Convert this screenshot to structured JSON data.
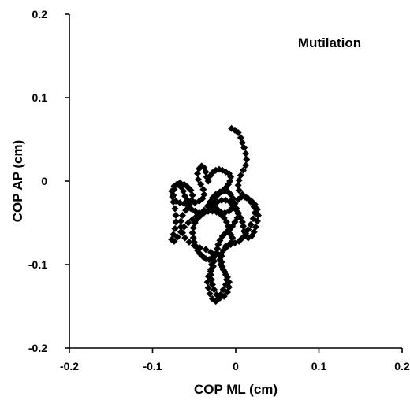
{
  "chart_data": {
    "type": "scatter",
    "title": "Mutilation",
    "xlabel": "COP ML (cm)",
    "ylabel": "COP AP (cm)",
    "xlim": [
      -0.2,
      0.2
    ],
    "ylim": [
      -0.2,
      0.2
    ],
    "x_ticks": [
      -0.2,
      -0.1,
      0,
      0.1,
      0.2
    ],
    "x_tick_labels": [
      "-0.2",
      "-0.1",
      "0",
      "0.1",
      "0.2"
    ],
    "y_ticks": [
      -0.2,
      -0.1,
      0,
      0.1,
      0.2
    ],
    "y_tick_labels": [
      "-0.2",
      "-0.1",
      "0",
      "0.1",
      "0.2"
    ],
    "marker": "diamond",
    "color": "#000000",
    "grid": false,
    "series": [
      {
        "points": [
          [
            -0.005,
            0.063
          ],
          [
            -0.001,
            0.061
          ],
          [
            0.003,
            0.058
          ],
          [
            0.006,
            0.052
          ],
          [
            0.008,
            0.046
          ],
          [
            0.01,
            0.04
          ],
          [
            0.012,
            0.033
          ],
          [
            0.013,
            0.026
          ],
          [
            0.012,
            0.019
          ],
          [
            0.009,
            0.013
          ],
          [
            0.006,
            0.007
          ],
          [
            0.004,
            0.001
          ],
          [
            0.003,
            -0.005
          ],
          [
            0.004,
            -0.011
          ],
          [
            0.008,
            -0.016
          ],
          [
            0.013,
            -0.02
          ],
          [
            0.018,
            -0.025
          ],
          [
            0.022,
            -0.031
          ],
          [
            0.023,
            -0.038
          ],
          [
            0.021,
            -0.045
          ],
          [
            0.018,
            -0.052
          ],
          [
            0.015,
            -0.058
          ],
          [
            0.012,
            -0.063
          ],
          [
            0.008,
            -0.068
          ],
          [
            0.004,
            -0.072
          ],
          [
            -0.001,
            -0.074
          ],
          [
            -0.006,
            -0.076
          ],
          [
            -0.011,
            -0.079
          ],
          [
            -0.015,
            -0.083
          ],
          [
            -0.018,
            -0.088
          ],
          [
            -0.019,
            -0.094
          ],
          [
            -0.018,
            -0.1
          ],
          [
            -0.015,
            -0.106
          ],
          [
            -0.012,
            -0.112
          ],
          [
            -0.011,
            -0.118
          ],
          [
            -0.012,
            -0.124
          ],
          [
            -0.015,
            -0.13
          ],
          [
            -0.018,
            -0.136
          ],
          [
            -0.021,
            -0.141
          ],
          [
            -0.024,
            -0.144
          ],
          [
            -0.028,
            -0.141
          ],
          [
            -0.031,
            -0.135
          ],
          [
            -0.033,
            -0.128
          ],
          [
            -0.034,
            -0.121
          ],
          [
            -0.033,
            -0.114
          ],
          [
            -0.03,
            -0.108
          ],
          [
            -0.027,
            -0.102
          ],
          [
            -0.026,
            -0.096
          ],
          [
            -0.027,
            -0.09
          ],
          [
            -0.03,
            -0.085
          ],
          [
            -0.036,
            -0.082
          ],
          [
            -0.043,
            -0.08
          ],
          [
            -0.05,
            -0.077
          ],
          [
            -0.056,
            -0.073
          ],
          [
            -0.061,
            -0.068
          ],
          [
            -0.064,
            -0.062
          ],
          [
            -0.066,
            -0.055
          ],
          [
            -0.066,
            -0.048
          ],
          [
            -0.064,
            -0.041
          ],
          [
            -0.06,
            -0.035
          ],
          [
            -0.056,
            -0.029
          ],
          [
            -0.053,
            -0.023
          ],
          [
            -0.052,
            -0.017
          ],
          [
            -0.054,
            -0.011
          ],
          [
            -0.058,
            -0.007
          ],
          [
            -0.062,
            -0.004
          ],
          [
            -0.067,
            -0.002
          ],
          [
            -0.071,
            -0.004
          ],
          [
            -0.074,
            -0.01
          ],
          [
            -0.075,
            -0.017
          ],
          [
            -0.075,
            -0.025
          ],
          [
            -0.073,
            -0.033
          ],
          [
            -0.072,
            -0.041
          ],
          [
            -0.072,
            -0.049
          ],
          [
            -0.073,
            -0.057
          ],
          [
            -0.075,
            -0.064
          ],
          [
            -0.077,
            -0.07
          ],
          [
            -0.074,
            -0.072
          ],
          [
            -0.07,
            -0.067
          ],
          [
            -0.066,
            -0.061
          ],
          [
            -0.062,
            -0.055
          ],
          [
            -0.057,
            -0.05
          ],
          [
            -0.052,
            -0.046
          ],
          [
            -0.047,
            -0.042
          ],
          [
            -0.042,
            -0.039
          ],
          [
            -0.038,
            -0.035
          ],
          [
            -0.034,
            -0.03
          ],
          [
            -0.031,
            -0.025
          ],
          [
            -0.028,
            -0.02
          ],
          [
            -0.024,
            -0.016
          ],
          [
            -0.019,
            -0.013
          ],
          [
            -0.015,
            -0.011
          ],
          [
            -0.012,
            -0.008
          ],
          [
            -0.009,
            -0.004
          ],
          [
            -0.007,
            0.0
          ],
          [
            -0.006,
            0.005
          ],
          [
            -0.008,
            0.009
          ],
          [
            -0.012,
            0.011
          ],
          [
            -0.016,
            0.013
          ],
          [
            -0.02,
            0.014
          ],
          [
            -0.024,
            0.013
          ],
          [
            -0.028,
            0.01
          ],
          [
            -0.031,
            0.006
          ],
          [
            -0.033,
            0.0
          ],
          [
            -0.035,
            0.005
          ],
          [
            -0.036,
            0.011
          ],
          [
            -0.038,
            0.016
          ],
          [
            -0.041,
            0.018
          ],
          [
            -0.044,
            0.015
          ],
          [
            -0.046,
            0.009
          ],
          [
            -0.045,
            0.002
          ],
          [
            -0.042,
            -0.004
          ],
          [
            -0.039,
            -0.01
          ],
          [
            -0.038,
            -0.016
          ],
          [
            -0.04,
            -0.021
          ],
          [
            -0.044,
            -0.024
          ],
          [
            -0.049,
            -0.026
          ],
          [
            -0.054,
            -0.026
          ],
          [
            -0.058,
            -0.023
          ],
          [
            -0.061,
            -0.018
          ],
          [
            -0.063,
            -0.012
          ],
          [
            -0.066,
            -0.007
          ],
          [
            -0.07,
            -0.004
          ],
          [
            -0.074,
            -0.006
          ],
          [
            -0.077,
            -0.012
          ],
          [
            -0.076,
            -0.019
          ],
          [
            -0.072,
            -0.024
          ],
          [
            -0.067,
            -0.026
          ],
          [
            -0.062,
            -0.027
          ],
          [
            -0.058,
            -0.029
          ],
          [
            -0.054,
            -0.033
          ],
          [
            -0.049,
            -0.036
          ],
          [
            -0.044,
            -0.038
          ],
          [
            -0.039,
            -0.038
          ],
          [
            -0.034,
            -0.036
          ],
          [
            -0.03,
            -0.032
          ],
          [
            -0.026,
            -0.028
          ],
          [
            -0.022,
            -0.025
          ],
          [
            -0.017,
            -0.023
          ],
          [
            -0.012,
            -0.023
          ],
          [
            -0.007,
            -0.025
          ],
          [
            -0.003,
            -0.029
          ],
          [
            0.0,
            -0.034
          ],
          [
            0.003,
            -0.039
          ],
          [
            0.006,
            -0.044
          ],
          [
            0.008,
            -0.049
          ],
          [
            0.009,
            -0.054
          ],
          [
            0.01,
            -0.06
          ],
          [
            0.012,
            -0.065
          ],
          [
            0.015,
            -0.068
          ],
          [
            0.019,
            -0.066
          ],
          [
            0.022,
            -0.061
          ],
          [
            0.024,
            -0.055
          ],
          [
            0.026,
            -0.048
          ],
          [
            0.027,
            -0.041
          ],
          [
            0.026,
            -0.034
          ],
          [
            0.023,
            -0.028
          ],
          [
            0.019,
            -0.024
          ],
          [
            0.015,
            -0.021
          ],
          [
            0.011,
            -0.019
          ],
          [
            0.007,
            -0.019
          ],
          [
            0.003,
            -0.022
          ],
          [
            -0.001,
            -0.027
          ],
          [
            -0.004,
            -0.032
          ],
          [
            -0.008,
            -0.036
          ],
          [
            -0.013,
            -0.038
          ],
          [
            -0.018,
            -0.037
          ],
          [
            -0.022,
            -0.034
          ],
          [
            -0.025,
            -0.03
          ],
          [
            -0.027,
            -0.026
          ],
          [
            -0.025,
            -0.02
          ],
          [
            -0.021,
            -0.016
          ],
          [
            -0.017,
            -0.013
          ],
          [
            -0.013,
            -0.012
          ],
          [
            -0.009,
            -0.013
          ],
          [
            -0.006,
            -0.016
          ],
          [
            -0.003,
            -0.021
          ],
          [
            -0.001,
            -0.027
          ],
          [
            0.001,
            -0.033
          ],
          [
            0.003,
            -0.038
          ],
          [
            0.002,
            -0.044
          ],
          [
            -0.001,
            -0.049
          ],
          [
            -0.004,
            -0.054
          ],
          [
            -0.008,
            -0.058
          ],
          [
            -0.012,
            -0.062
          ],
          [
            -0.016,
            -0.066
          ],
          [
            -0.019,
            -0.071
          ],
          [
            -0.021,
            -0.076
          ],
          [
            -0.022,
            -0.081
          ],
          [
            -0.023,
            -0.086
          ],
          [
            -0.025,
            -0.09
          ],
          [
            -0.028,
            -0.093
          ],
          [
            -0.032,
            -0.094
          ],
          [
            -0.036,
            -0.093
          ],
          [
            -0.04,
            -0.09
          ],
          [
            -0.043,
            -0.087
          ],
          [
            -0.046,
            -0.083
          ],
          [
            -0.048,
            -0.078
          ],
          [
            -0.05,
            -0.073
          ],
          [
            -0.051,
            -0.068
          ],
          [
            -0.052,
            -0.062
          ],
          [
            -0.051,
            -0.056
          ],
          [
            -0.049,
            -0.05
          ],
          [
            -0.046,
            -0.045
          ],
          [
            -0.042,
            -0.041
          ],
          [
            -0.038,
            -0.038
          ],
          [
            -0.033,
            -0.036
          ],
          [
            -0.028,
            -0.036
          ],
          [
            -0.023,
            -0.037
          ],
          [
            -0.018,
            -0.04
          ],
          [
            -0.014,
            -0.044
          ],
          [
            -0.011,
            -0.049
          ],
          [
            -0.009,
            -0.054
          ],
          [
            -0.008,
            -0.059
          ],
          [
            -0.006,
            -0.064
          ],
          [
            -0.004,
            -0.068
          ],
          [
            -0.005,
            -0.073
          ],
          [
            -0.008,
            -0.076
          ],
          [
            -0.012,
            -0.078
          ],
          [
            -0.015,
            -0.083
          ],
          [
            -0.017,
            -0.09
          ],
          [
            -0.017,
            -0.097
          ],
          [
            -0.016,
            -0.103
          ],
          [
            -0.013,
            -0.109
          ],
          [
            -0.01,
            -0.115
          ],
          [
            -0.008,
            -0.121
          ],
          [
            -0.008,
            -0.127
          ],
          [
            -0.01,
            -0.133
          ],
          [
            -0.014,
            -0.138
          ],
          [
            -0.019,
            -0.14
          ],
          [
            -0.023,
            -0.136
          ],
          [
            -0.026,
            -0.13
          ],
          [
            -0.028,
            -0.124
          ],
          [
            -0.029,
            -0.118
          ],
          [
            -0.03,
            -0.112
          ],
          [
            -0.03,
            -0.106
          ],
          [
            -0.029,
            -0.1
          ]
        ]
      }
    ]
  }
}
